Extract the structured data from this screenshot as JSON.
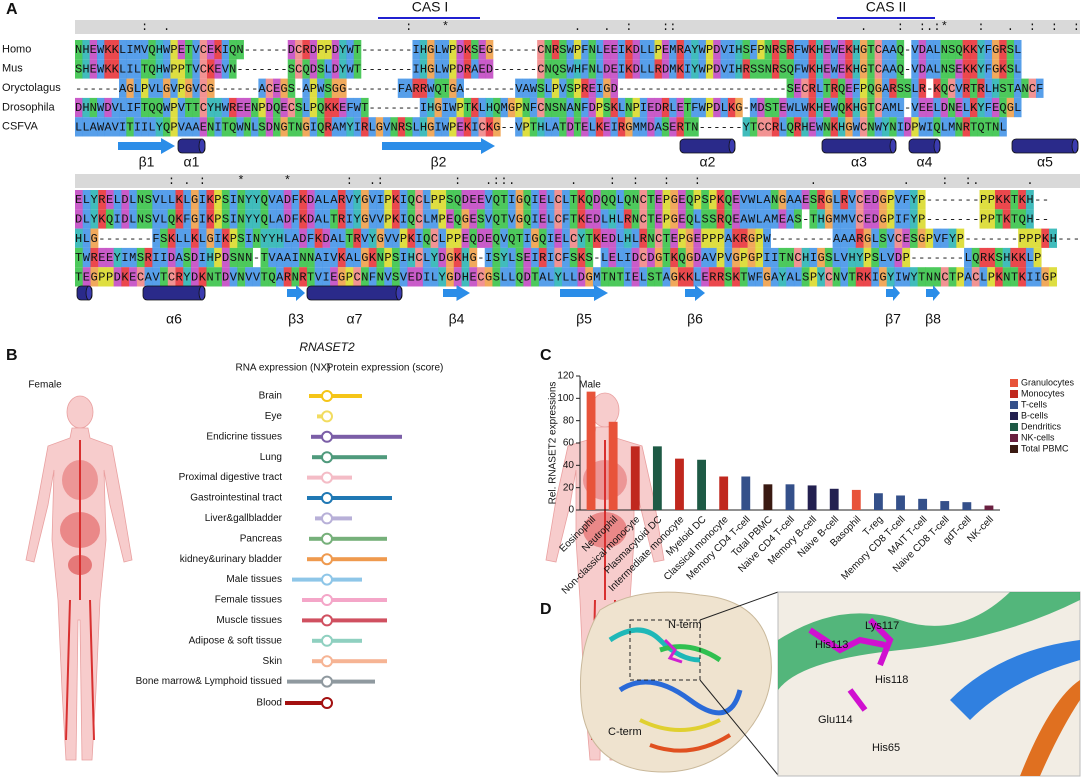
{
  "panels": {
    "a": "A",
    "b": "B",
    "c": "C",
    "d": "D"
  },
  "alignment": {
    "cas1": "CAS I",
    "cas2": "CAS II",
    "species": [
      "Homo",
      "Mus",
      "Oryctolagus",
      "Drosophila",
      "CSFVA"
    ],
    "blocks": [
      {
        "conservation": "         :  .                                :    *                 .   .  :    ::                         .    :  :.:*    :   .  :  :  :",
        "sequences": [
          "NHEWKKLIMVQHWPETVCEKIQN------DCRDPPDYWT-------IHGLWPDKSEG------CNRSWPFNLEEIKDLLPEMRAYWPDVIHSFPNRSRFWKHEWEKHGTCAAQ-VDALNSQKKYFGRSL",
          "SHEWKKLILTQHWPPTVCKEVN-------SCQDSLDYWT-------IHGLWPDRAED------CNQSWHFNLDEIKDLLRDMKIYWPDVIHRSSNRSQFWKHEWEKHGTCAAQ-VDALNSEKKYFGKSL",
          "------AGLPVLGVPGVCG------ACEGS-APWSGG-------FARRWQTGA-------VAWSLPVSPREIGD-----------------------SECRLTRQEFPQGARSSLR-KQCVRTRLHSTANCF",
          "DHNWDVLIFTQQWPVTTCYHWREENPDQECSLPQKKEFWT-------IHGIWPTKLHQMGPNFCNSNANFDPSKLNPIEDRLETFWPDLKG-MDSTEWLWKHEWQKHGTCAML-VEELDNELKYFEQGL",
          "LLAWAVITIILYQPVAAENITQWNLSDNGTNGIQRAMYIRLGVNRSLHGIWPEKICKG--VPTHLATDTELKEIRGMMDASERTN------YTCCRLQRHEWNKHGWCNWYNIDPWIQLMNRTQTNL"
        ],
        "structure": [
          "β1",
          "α1",
          "β2",
          "α2",
          "α3",
          "α4",
          "α5"
        ]
      },
      {
        "conservation": "            : . :    *     *       :  .:         :   .::.       .    :  :   :   :              .           .    :  :.      .      ",
        "sequences": [
          "ELYRELDLNSVLLKLGIKPSINYYQVADFKDALARVYGVIPKIQCLPPSQDEEVQTIGQIELCLTKQDQQLQNCTEPGEQPSPKQEVWLANGAAESRGLRVCEDGPVFYP-------PPKKTKH--",
          "DLYKQIDLNSVLQKFGIKPSINYYQLADFKDALTRIYGVVPKIQCLMPEQGESVQTVGQIELCFTKEDLHLRNCTEPGEQLSSRQEAWLAMEAS-THGMMVCEDGPIFYP-------PPTKTQH--",
          "HLG-------FSKLLKLGIKPSINYYHLADFKDALTRVYGVVPKIQCLPPEQDEQVQTIGQIELCYTKEDLHLRNCTEPGEPPPAKRGPW--------AAARGLSVCESGPVFYP-------PPPKH---",
          "TWREEYIMSRIIDASDIHPDSNN-TVAAINNAIVKALGKNPSIHCLYDGKHG-ISYLSEIRICFSKS-LELIDCDGTKQGDAVPVGPGPIITNCHIGSLVHYPSLVDP-------LQRKSHKKLP",
          "TEGPPDKECAVTCRYDKNTDVNVVTQARNRTVIEGPCNFNVSVEDILYGDHECGSLLQDTALYLLDGMTNTIELSTAGKKLERRSKTWFGAYALSPYCNVTRKIGYIWYTNNCTPACLPKNTKIIGP"
        ],
        "structure": [
          "α6",
          "β3",
          "α7",
          "β4",
          "β5",
          "β6",
          "β7",
          "β8"
        ]
      }
    ]
  },
  "expression": {
    "title": "RNASET2",
    "rna_header": "RNA expression (NX)",
    "protein_header": "Protein expression (score)",
    "female": "Female",
    "male": "Male",
    "tissues": [
      {
        "name": "Brain",
        "color": "#f5c518",
        "rna": 18,
        "protein": 35
      },
      {
        "name": "Eye",
        "color": "#f2dc60",
        "rna": 10,
        "protein": 0
      },
      {
        "name": "Endicrine tissues",
        "color": "#7b5ea7",
        "rna": 16,
        "protein": 75
      },
      {
        "name": "Lung",
        "color": "#4f9a7c",
        "rna": 15,
        "protein": 60
      },
      {
        "name": "Proximal digestive tract",
        "color": "#f4bcc6",
        "rna": 20,
        "protein": 25
      },
      {
        "name": "Gastrointestinal tract",
        "color": "#1f78b4",
        "rna": 20,
        "protein": 65
      },
      {
        "name": "Liver&gallbladder",
        "color": "#b8b0d8",
        "rna": 12,
        "protein": 25
      },
      {
        "name": "Pancreas",
        "color": "#76b07a",
        "rna": 18,
        "protein": 60
      },
      {
        "name": "kidney&urinary bladder",
        "color": "#ef9a4e",
        "rna": 20,
        "protein": 60
      },
      {
        "name": "Male tissues",
        "color": "#8ec6e8",
        "rna": 35,
        "protein": 35
      },
      {
        "name": "Female tissues",
        "color": "#f4a6c8",
        "rna": 25,
        "protein": 60
      },
      {
        "name": "Muscle tissues",
        "color": "#d05060",
        "rna": 25,
        "protein": 60
      },
      {
        "name": "Adipose & soft tissue",
        "color": "#8fd0c0",
        "rna": 15,
        "protein": 35
      },
      {
        "name": "Skin",
        "color": "#f6b494",
        "rna": 15,
        "protein": 60
      },
      {
        "name": "Bone marrow& Lymphoid tissued",
        "color": "#8f999f",
        "rna": 40,
        "protein": 48
      },
      {
        "name": "Blood",
        "color": "#a31010",
        "rna": 42,
        "protein": 0
      }
    ]
  },
  "chart_data": {
    "type": "bar",
    "ylabel": "Rel. RNASET2 expressions",
    "categories": [
      "Eosinophil",
      "Neutrophil",
      "Non-classical monocyte",
      "Plasmacytoid DC",
      "Intermediate monocyte",
      "Myeloid DC",
      "Classical monocyte",
      "Memory CD4 T-cell",
      "Total PBMC",
      "Naive CD4 T-cell",
      "Memory B-cell",
      "Naive B-cell",
      "Basophil",
      "T-reg",
      "Memory CD8 T-cell",
      "MAIT T-cell",
      "Naive CD8 T-cell",
      "gdT-cell",
      "NK-cell"
    ],
    "series": [
      {
        "name": "Granulocytes",
        "color": "#e8533a",
        "values": [
          106,
          79,
          null,
          null,
          null,
          null,
          null,
          null,
          null,
          null,
          null,
          null,
          18,
          null,
          null,
          null,
          null,
          null,
          null
        ]
      },
      {
        "name": "Monocytes",
        "color": "#c0281e",
        "values": [
          null,
          null,
          57,
          null,
          46,
          null,
          30,
          null,
          null,
          null,
          null,
          null,
          null,
          null,
          null,
          null,
          null,
          null,
          null
        ]
      },
      {
        "name": "T-cells",
        "color": "#34508a",
        "values": [
          null,
          null,
          null,
          null,
          null,
          null,
          null,
          30,
          null,
          23,
          null,
          null,
          null,
          15,
          13,
          10,
          8,
          7,
          null
        ]
      },
      {
        "name": "B-cells",
        "color": "#232050",
        "values": [
          null,
          null,
          null,
          null,
          null,
          null,
          null,
          null,
          null,
          null,
          22,
          19,
          null,
          null,
          null,
          null,
          null,
          null,
          null
        ]
      },
      {
        "name": "Dendritics",
        "color": "#1e5a45",
        "values": [
          null,
          null,
          null,
          57,
          null,
          45,
          null,
          null,
          null,
          null,
          null,
          null,
          null,
          null,
          null,
          null,
          null,
          null,
          null
        ]
      },
      {
        "name": "NK-cells",
        "color": "#6a2040",
        "values": [
          null,
          null,
          null,
          null,
          null,
          null,
          null,
          null,
          null,
          null,
          null,
          null,
          null,
          null,
          null,
          null,
          null,
          null,
          4
        ]
      },
      {
        "name": "Total PBMC",
        "color": "#3a1a12",
        "values": [
          null,
          null,
          null,
          null,
          null,
          null,
          null,
          null,
          23,
          null,
          null,
          null,
          null,
          null,
          null,
          null,
          null,
          null,
          null
        ]
      }
    ],
    "ylim": [
      0,
      120
    ],
    "yticks": [
      0,
      20,
      40,
      60,
      80,
      100,
      120
    ],
    "legend": "right"
  },
  "structure": {
    "labels": [
      "N-term",
      "C-term",
      "His113",
      "Lys117",
      "His118",
      "Glu114",
      "His65"
    ]
  }
}
